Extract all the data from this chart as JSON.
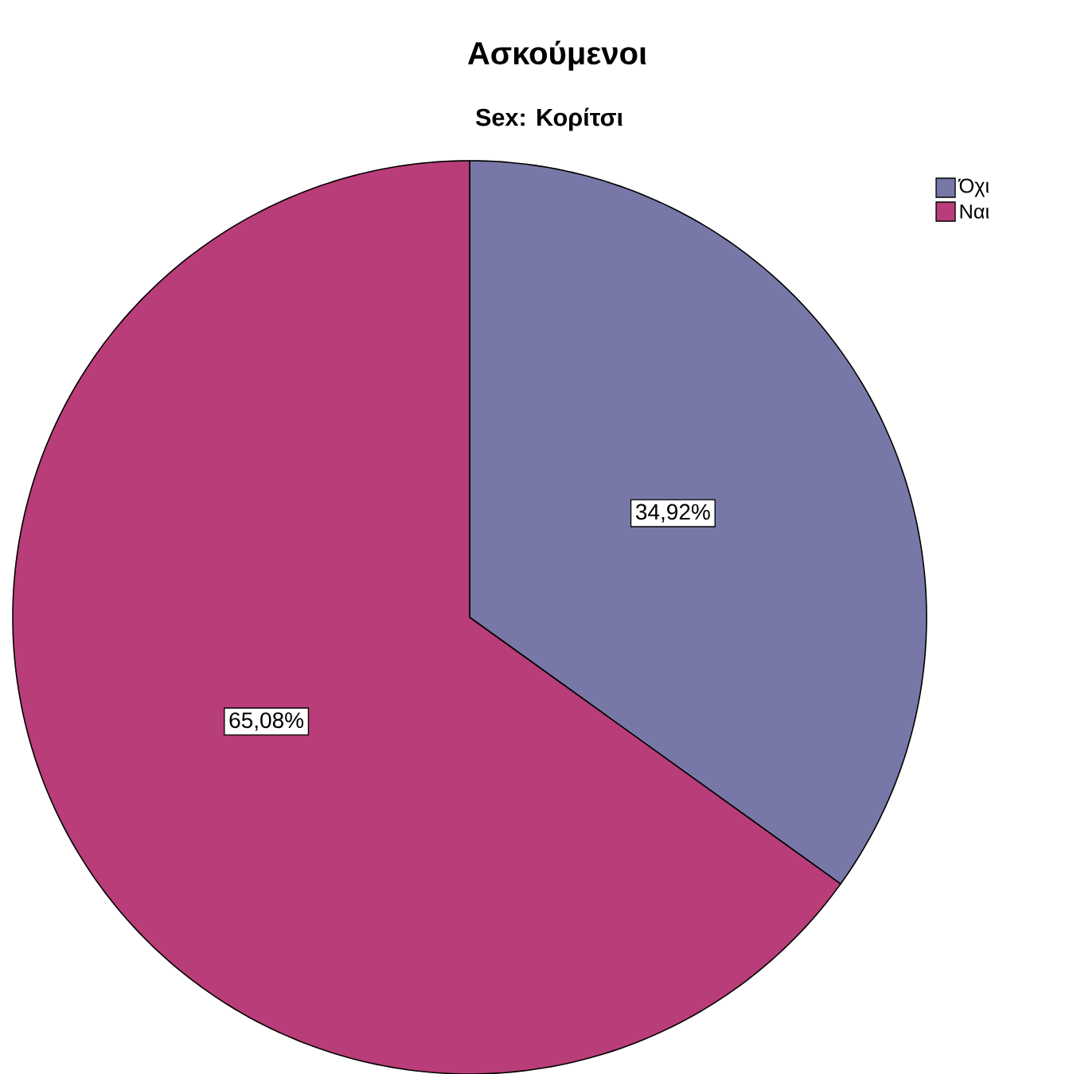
{
  "chart_data": {
    "type": "pie",
    "title": "Ασκούμενοι",
    "subtitle": "Sex: Κορίτσι",
    "categories": [
      "Όχι",
      "Ναι"
    ],
    "values": [
      34.92,
      65.08
    ],
    "colors": [
      "#7878a8",
      "#b83d78"
    ],
    "value_labels": [
      "34,92%",
      "65,08%"
    ],
    "legend": "top right"
  }
}
